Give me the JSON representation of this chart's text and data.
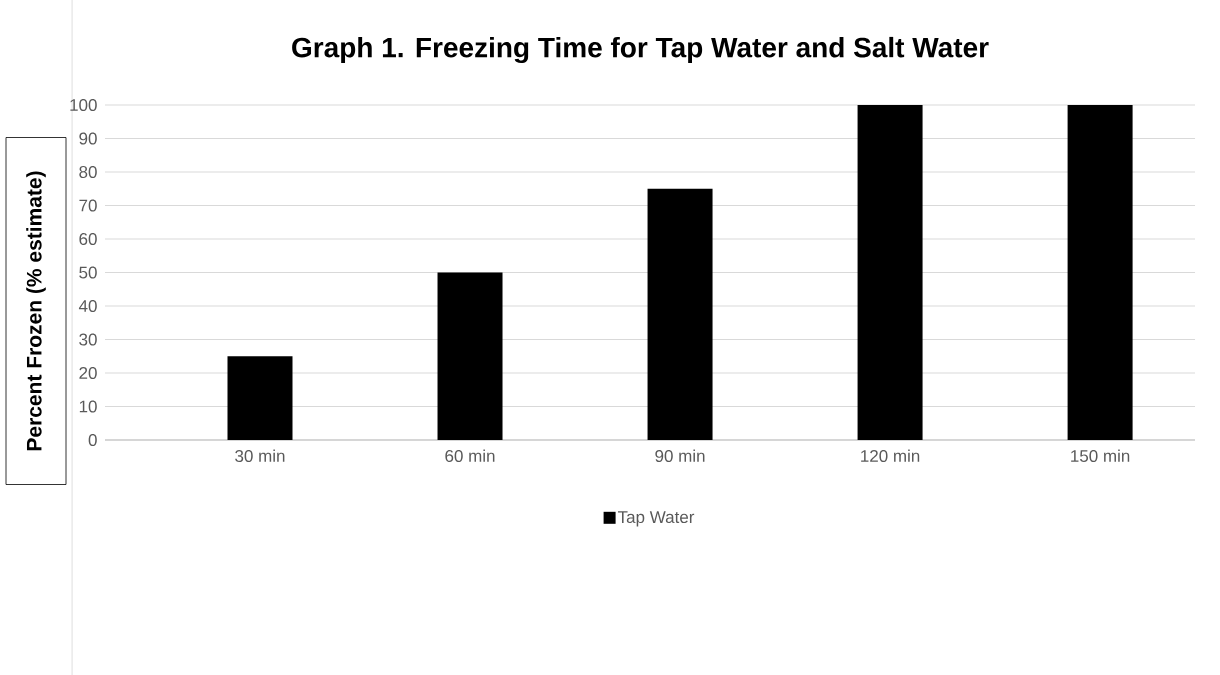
{
  "chart_data": {
    "type": "bar",
    "title": "Graph 1. Freezing Time for Tap Water and Salt Water",
    "ylabel": "Percent Frozen (% estimate)",
    "categories": [
      "30 min",
      "60 min",
      "90 min",
      "120 min",
      "150 min"
    ],
    "series": [
      {
        "name": "Tap Water",
        "color": "#000000",
        "values": [
          25,
          50,
          75,
          100,
          100
        ]
      }
    ],
    "ylim": [
      0,
      100
    ],
    "yticks": [
      0,
      10,
      20,
      30,
      40,
      50,
      60,
      70,
      80,
      90,
      100
    ],
    "grid": "y",
    "legend": "bottom"
  }
}
